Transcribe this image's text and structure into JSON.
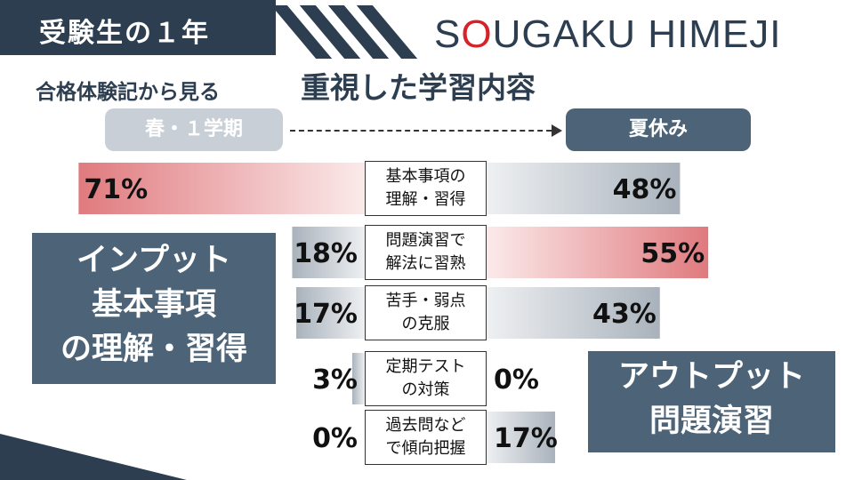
{
  "header": {
    "title": "受験生の１年",
    "brand_pre": "S",
    "brand_o": "O",
    "brand_post": "UGAKU HIMEJI"
  },
  "subtitle": {
    "small": "合格体験記から見る",
    "large": "重視した学習内容"
  },
  "periods": {
    "left": "春・１学期",
    "right": "夏休み"
  },
  "callouts": {
    "input_lines": [
      "インプット",
      "基本事項",
      "の理解・習得"
    ],
    "output_lines": [
      "アウトプット",
      "問題演習"
    ]
  },
  "colors": {
    "navy": "#2c3e50",
    "slate": "#4d6478",
    "red_bar": "#e07a7e",
    "gray_bar": "#a9b2bc"
  },
  "chart_data": {
    "type": "bar",
    "orientation": "horizontal-diverging",
    "categories": [
      "基本事項の\n理解・習得",
      "問題演習で\n解法に習熟",
      "苦手・弱点\nの克服",
      "定期テスト\nの対策",
      "過去問など\nで傾向把握"
    ],
    "series": [
      {
        "name": "春・１学期",
        "values": [
          71,
          18,
          17,
          3,
          0
        ],
        "labels": [
          "71%",
          "18%",
          "17%",
          "3%",
          "0%"
        ]
      },
      {
        "name": "夏休み",
        "values": [
          48,
          55,
          43,
          0,
          17
        ],
        "labels": [
          "48%",
          "55%",
          "43%",
          "0%",
          "17%"
        ]
      }
    ],
    "unit": "%"
  }
}
